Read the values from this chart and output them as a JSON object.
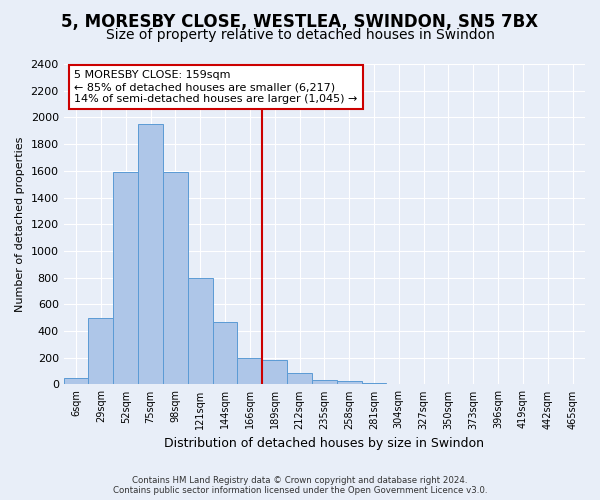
{
  "title": "5, MORESBY CLOSE, WESTLEA, SWINDON, SN5 7BX",
  "subtitle": "Size of property relative to detached houses in Swindon",
  "xlabel": "Distribution of detached houses by size in Swindon",
  "ylabel": "Number of detached properties",
  "footer_line1": "Contains HM Land Registry data © Crown copyright and database right 2024.",
  "footer_line2": "Contains public sector information licensed under the Open Government Licence v3.0.",
  "categories": [
    "6sqm",
    "29sqm",
    "52sqm",
    "75sqm",
    "98sqm",
    "121sqm",
    "144sqm",
    "166sqm",
    "189sqm",
    "212sqm",
    "235sqm",
    "258sqm",
    "281sqm",
    "304sqm",
    "327sqm",
    "350sqm",
    "373sqm",
    "396sqm",
    "419sqm",
    "442sqm",
    "465sqm"
  ],
  "bar_values": [
    50,
    500,
    1590,
    1950,
    1590,
    800,
    470,
    195,
    180,
    85,
    30,
    22,
    10,
    5,
    3,
    2,
    2,
    1,
    1,
    0,
    0
  ],
  "bar_color": "#aec6e8",
  "bar_edge_color": "#5b9bd5",
  "ylim": [
    0,
    2400
  ],
  "yticks": [
    0,
    200,
    400,
    600,
    800,
    1000,
    1200,
    1400,
    1600,
    1800,
    2000,
    2200,
    2400
  ],
  "vline_pos": 7.5,
  "vline_color": "#cc0000",
  "annotation_text": "5 MORESBY CLOSE: 159sqm\n← 85% of detached houses are smaller (6,217)\n14% of semi-detached houses are larger (1,045) →",
  "annotation_box_color": "#ffffff",
  "annotation_box_edge_color": "#cc0000",
  "bg_color": "#e8eef8",
  "plot_bg_color": "#e8eef8",
  "grid_color": "#ffffff",
  "title_fontsize": 12,
  "subtitle_fontsize": 10
}
